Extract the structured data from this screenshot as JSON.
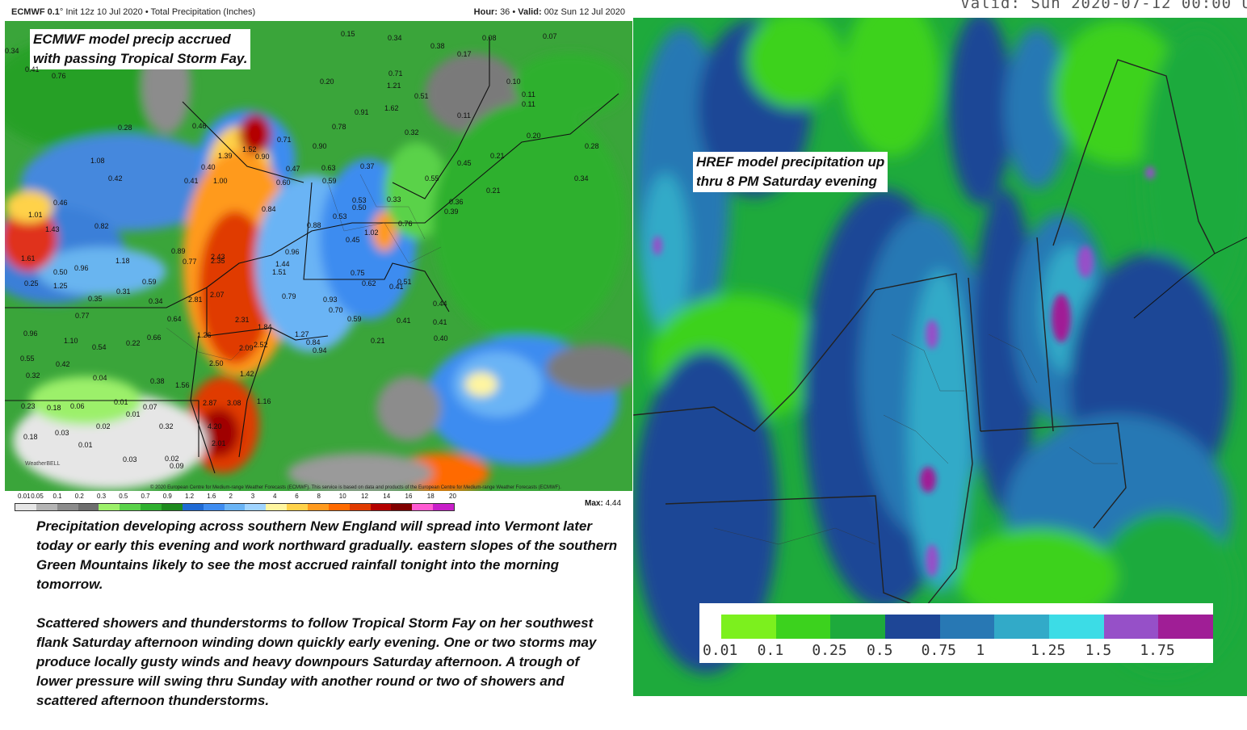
{
  "ecmwf": {
    "header_left_model": "ECMWF 0.1",
    "header_left_rest": "° Init 12z 10 Jul 2020 • Total Precipitation (Inches)",
    "header_right_hour_label": "Hour:",
    "header_right_hour": "36",
    "header_right_valid_label": "Valid:",
    "header_right_valid": "00z Sun 12 Jul 2020",
    "annotation_line1": "ECMWF model precip accrued",
    "annotation_line2": "with passing Tropical Storm Fay.",
    "copyright": "© 2020 European Centre for Medium-range Weather Forecasts (ECMWF). This service is based on data and products of the European Centre for Medium-range Weather Forecasts (ECMWF).",
    "watermark": "WeatherBELL",
    "map_values": [
      {
        "t": "0.34"
      },
      {
        "t": "0.76"
      },
      {
        "t": "0.41"
      },
      {
        "t": "0.15"
      },
      {
        "t": "0.34"
      },
      {
        "t": "0.38"
      },
      {
        "t": "0.08"
      },
      {
        "t": "0.07"
      },
      {
        "t": "0.17"
      },
      {
        "t": "0.20"
      },
      {
        "t": "0.71"
      },
      {
        "t": "1.21"
      },
      {
        "t": "0.51"
      },
      {
        "t": "0.10"
      },
      {
        "t": "0.11"
      },
      {
        "t": "0.11"
      },
      {
        "t": "0.11"
      },
      {
        "t": "0.28"
      },
      {
        "t": "0.46"
      },
      {
        "t": "0.91"
      },
      {
        "t": "1.62"
      },
      {
        "t": "0.32"
      },
      {
        "t": "0.20"
      },
      {
        "t": "0.28"
      },
      {
        "t": "1.08"
      },
      {
        "t": "0.71"
      },
      {
        "t": "1.52"
      },
      {
        "t": "0.90"
      },
      {
        "t": "0.78"
      },
      {
        "t": "0.21"
      },
      {
        "t": "1.39"
      },
      {
        "t": "0.90"
      },
      {
        "t": "0.45"
      },
      {
        "t": "0.42"
      },
      {
        "t": "0.40"
      },
      {
        "t": "1.00"
      },
      {
        "t": "0.47"
      },
      {
        "t": "0.63"
      },
      {
        "t": "0.37"
      },
      {
        "t": "0.55"
      },
      {
        "t": "0.34"
      },
      {
        "t": "0.41"
      },
      {
        "t": "0.60"
      },
      {
        "t": "0.59"
      },
      {
        "t": "0.53"
      },
      {
        "t": "0.33"
      },
      {
        "t": "0.36"
      },
      {
        "t": "0.21"
      },
      {
        "t": "0.46"
      },
      {
        "t": "1.01"
      },
      {
        "t": "0.84"
      },
      {
        "t": "0.50"
      },
      {
        "t": "0.39"
      },
      {
        "t": "0.53"
      },
      {
        "t": "0.82"
      },
      {
        "t": "0.88"
      },
      {
        "t": "0.76"
      },
      {
        "t": "1.43"
      },
      {
        "t": "1.02"
      },
      {
        "t": "0.45"
      },
      {
        "t": "0.89"
      },
      {
        "t": "0.96"
      },
      {
        "t": "0.77"
      },
      {
        "t": "2.43"
      },
      {
        "t": "2.35"
      },
      {
        "t": "1.44"
      },
      {
        "t": "1.18"
      },
      {
        "t": "1.61"
      },
      {
        "t": "0.50"
      },
      {
        "t": "0.96"
      },
      {
        "t": "1.51"
      },
      {
        "t": "0.75"
      },
      {
        "t": "0.62"
      },
      {
        "t": "0.41"
      },
      {
        "t": "0.51"
      },
      {
        "t": "0.25"
      },
      {
        "t": "1.25"
      },
      {
        "t": "0.59"
      },
      {
        "t": "0.31"
      },
      {
        "t": "0.35"
      },
      {
        "t": "0.34"
      },
      {
        "t": "2.81"
      },
      {
        "t": "2.07"
      },
      {
        "t": "0.79"
      },
      {
        "t": "0.93"
      },
      {
        "t": "0.70"
      },
      {
        "t": "0.44"
      },
      {
        "t": "0.77"
      },
      {
        "t": "0.64"
      },
      {
        "t": "2.31"
      },
      {
        "t": "1.84"
      },
      {
        "t": "0.59"
      },
      {
        "t": "0.41"
      },
      {
        "t": "0.41"
      },
      {
        "t": "0.96"
      },
      {
        "t": "1.26"
      },
      {
        "t": "1.27"
      },
      {
        "t": "0.84"
      },
      {
        "t": "0.21"
      },
      {
        "t": "0.40"
      },
      {
        "t": "1.10"
      },
      {
        "t": "0.54"
      },
      {
        "t": "0.22"
      },
      {
        "t": "0.66"
      },
      {
        "t": "2.09"
      },
      {
        "t": "2.52"
      },
      {
        "t": "0.94"
      },
      {
        "t": "0.55"
      },
      {
        "t": "0.42"
      },
      {
        "t": "2.50"
      },
      {
        "t": "1.42"
      },
      {
        "t": "0.32"
      },
      {
        "t": "0.04"
      },
      {
        "t": "0.38"
      },
      {
        "t": "1.56"
      },
      {
        "t": "0.23"
      },
      {
        "t": "0.18"
      },
      {
        "t": "0.06"
      },
      {
        "t": "0.01"
      },
      {
        "t": "0.07"
      },
      {
        "t": "2.87"
      },
      {
        "t": "3.08"
      },
      {
        "t": "1.16"
      },
      {
        "t": "0.01"
      },
      {
        "t": "0.02"
      },
      {
        "t": "0.32"
      },
      {
        "t": "4.20"
      },
      {
        "t": "0.18"
      },
      {
        "t": "0.03"
      },
      {
        "t": "2.01"
      },
      {
        "t": "0.01"
      },
      {
        "t": "0.03"
      },
      {
        "t": "0.02"
      },
      {
        "t": "0.09"
      }
    ],
    "legend_ticks": [
      "0.01",
      "0.05",
      "0.1",
      "0.2",
      "0.3",
      "0.5",
      "0.7",
      "0.9",
      "1.2",
      "1.6",
      "2",
      "3",
      "4",
      "6",
      "8",
      "10",
      "12",
      "14",
      "16",
      "18",
      "20"
    ],
    "legend_colors": [
      "#e6e6e6",
      "#b4b4b4",
      "#8c8c8c",
      "#6e6e6e",
      "#9cf06a",
      "#5ad24a",
      "#2fb02f",
      "#1e8a1e",
      "#1f6ad4",
      "#3e8cf0",
      "#6ab4f5",
      "#a0d4ff",
      "#fff5a0",
      "#ffd24a",
      "#ff9a1e",
      "#ff6a00",
      "#e03a00",
      "#b40000",
      "#800000",
      "#ff5ad2",
      "#c81ec8"
    ],
    "max_label": "Max:",
    "max_value": "4.44"
  },
  "discussion": {
    "p1": "Precipitation developing across southern New England will spread into Vermont later today or early this evening and work northward gradually. eastern slopes of the southern Green Mountains likely to see the most accrued rainfall tonight into the morning tomorrow.",
    "p2": "Scattered showers and thunderstorms to follow Tropical Storm Fay on her southwest flank Saturday afternoon winding down quickly early evening. One or two storms may produce locally gusty winds and heavy downpours Saturday afternoon. A trough of lower pressure will swing thru Sunday with another round or two of showers and scattered afternoon thunderstorms."
  },
  "href": {
    "valid_text": "Valid: Sun 2020-07-12 00:00 U",
    "annotation_line1": "HREF model precipitation up",
    "annotation_line2": "thru 8 PM Saturday evening",
    "legend_labels": [
      "0.01",
      "0.1",
      "0.25",
      "0.5",
      "0.75",
      "1",
      "1.25",
      "1.5",
      "1.75"
    ],
    "legend_colors": [
      "#7cf01e",
      "#3cd21e",
      "#1eaa3c",
      "#1e4696",
      "#2878b4",
      "#32aac8",
      "#3cdce6",
      "#9650c8",
      "#a01e96"
    ]
  }
}
